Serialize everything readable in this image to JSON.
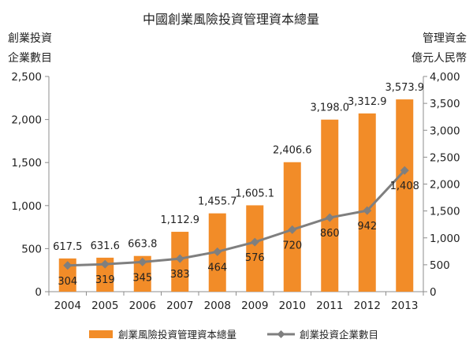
{
  "chart_data": {
    "type": "bar",
    "title": "中國創業風險投資管理資本總量",
    "categories": [
      "2004",
      "2005",
      "2006",
      "2007",
      "2008",
      "2009",
      "2010",
      "2011",
      "2012",
      "2013"
    ],
    "series": [
      {
        "name": "創業風險投資管理資本總量",
        "type": "bar",
        "axis": "right",
        "color": "#F28C28",
        "values": [
          617.5,
          631.6,
          663.8,
          1112.9,
          1455.7,
          1605.1,
          2406.6,
          3198.0,
          3312.9,
          3573.9
        ],
        "labels": [
          "617.5",
          "631.6",
          "663.8",
          "1,112.9",
          "1,455.7",
          "1,605.1",
          "2,406.6",
          "3,198.0",
          "3,312.9",
          "3,573.9"
        ]
      },
      {
        "name": "創業投資企業數目",
        "type": "line",
        "axis": "left",
        "color": "#7F7F7F",
        "marker": "diamond",
        "values": [
          304,
          319,
          345,
          383,
          464,
          576,
          720,
          860,
          942,
          1408
        ],
        "labels": [
          "304",
          "319",
          "345",
          "383",
          "464",
          "576",
          "720",
          "860",
          "942",
          "1,408"
        ]
      }
    ],
    "y_left": {
      "title_lines": [
        "創業投資",
        "企業數目"
      ],
      "range": [
        0,
        2500
      ],
      "ticks": [
        "0",
        "500",
        "1,000",
        "1,500",
        "2,000",
        "2,500"
      ]
    },
    "y_right": {
      "title_lines": [
        "管理資金",
        "億元人民幣"
      ],
      "range": [
        0,
        4000
      ],
      "ticks": [
        "0",
        "500",
        "1,000",
        "1,500",
        "2,000",
        "2,500",
        "3,000",
        "3,500",
        "4,000"
      ]
    },
    "grid": false,
    "legend": "bottom"
  }
}
